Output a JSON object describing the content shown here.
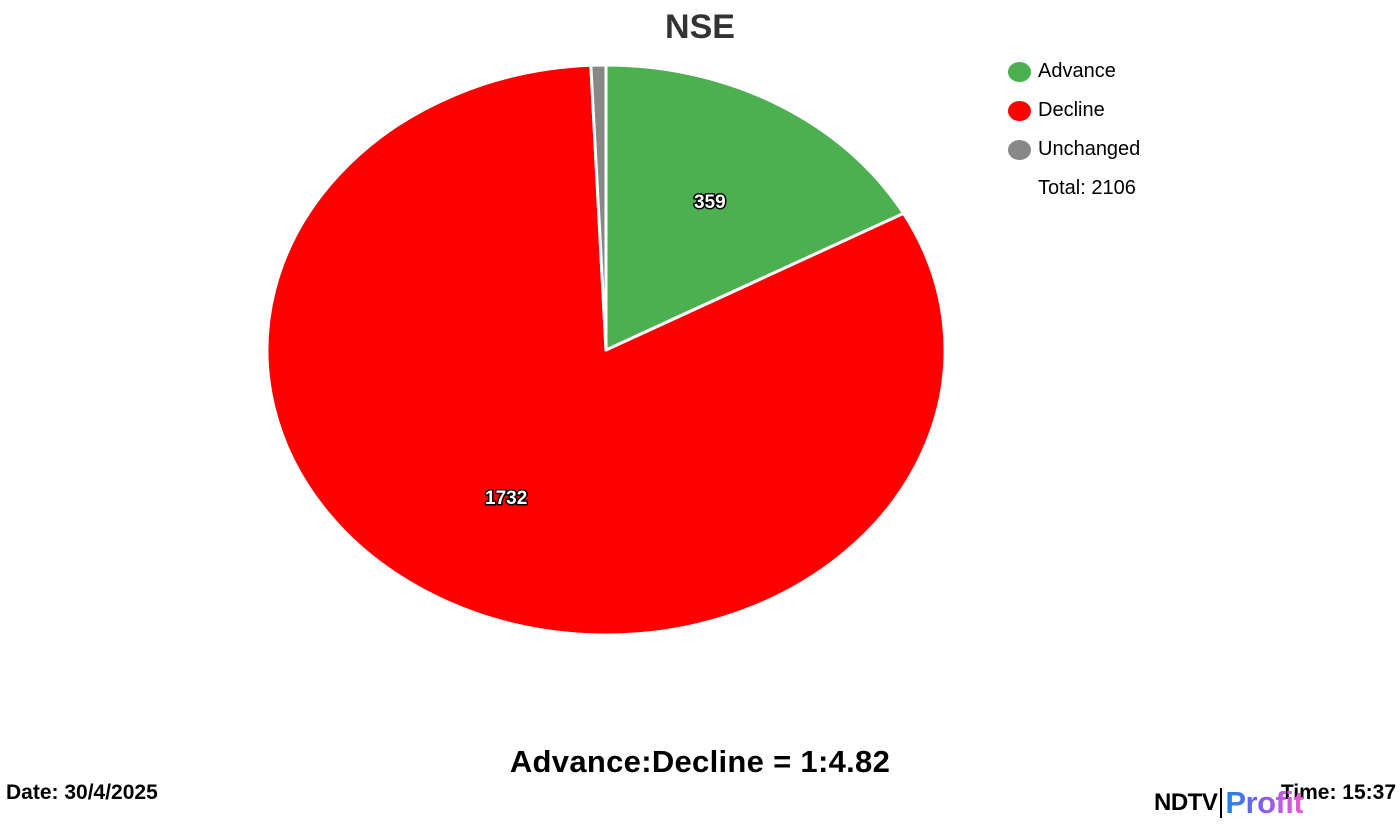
{
  "chart_data": {
    "type": "pie",
    "title": "NSE",
    "categories": [
      "Advance",
      "Decline",
      "Unchanged"
    ],
    "values": [
      359,
      1732,
      15
    ],
    "colors": [
      "#4caf50",
      "#ff0000",
      "#888888"
    ],
    "data_labels": [
      "359",
      "1732",
      ""
    ],
    "legend": {
      "placement": "top-right",
      "total_label": "Total: 2106"
    }
  },
  "footer": {
    "ratio": "Advance:Decline = 1:4.82",
    "date": "Date: 30/4/2025",
    "time": "Time: 15:37"
  },
  "brand": {
    "ndtv": "NDTV",
    "profit": "Profit"
  }
}
